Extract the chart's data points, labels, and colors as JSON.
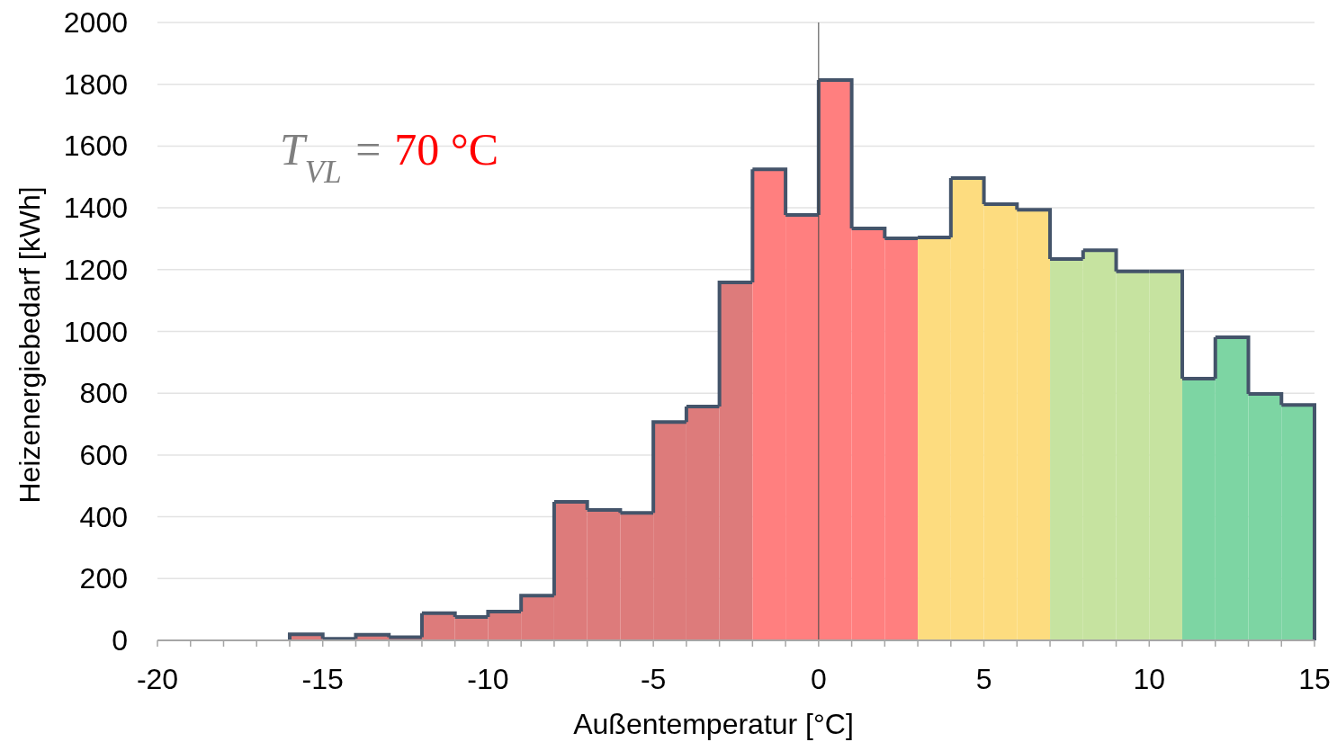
{
  "chart_data": {
    "type": "histogram",
    "xlabel": "Außentemperatur [°C]",
    "ylabel": "Heizenergiebedarf [kWh]",
    "bins": [
      -16,
      -15,
      -14,
      -13,
      -12,
      -11,
      -10,
      -9,
      -8,
      -7,
      -6,
      -5,
      -4,
      -3,
      -2,
      -1,
      0,
      1,
      2,
      3,
      4,
      5,
      6,
      7,
      8,
      9,
      10,
      11,
      12,
      13,
      14,
      15
    ],
    "values": [
      20,
      5,
      18,
      10,
      88,
      76,
      93,
      145,
      448,
      422,
      413,
      707,
      757,
      1159,
      1525,
      1377,
      1814,
      1333,
      1301,
      1304,
      1496,
      1412,
      1394,
      1234,
      1263,
      1194,
      1194,
      847,
      981,
      798,
      762
    ],
    "color": "#44546a",
    "colors": [
      "#dd7b7b",
      "#dd7b7b",
      "#dd7b7b",
      "#dd7b7b",
      "#dd7b7b",
      "#dd7b7b",
      "#dd7b7b",
      "#dd7b7b",
      "#dd7b7b",
      "#dd7b7b",
      "#dd7b7b",
      "#dd7b7b",
      "#dd7b7b",
      "#dd7b7b",
      "#ff7f7f",
      "#ff7f7f",
      "#ff7f7f",
      "#ff7f7f",
      "#ff7f7f",
      "#fddc7f",
      "#fddc7f",
      "#fddc7f",
      "#fddc7f",
      "#c6e3a0",
      "#c6e3a0",
      "#c6e3a0",
      "#c6e3a0",
      "#7dd5a3",
      "#7dd5a3",
      "#7dd5a3",
      "#7dd5a3"
    ],
    "xlim": [
      -20,
      15
    ],
    "xticks": [
      -20,
      {
        "value": -19,
        "label": null
      },
      {
        "value": -18,
        "label": null
      },
      {
        "value": -17,
        "label": null
      },
      {
        "value": -16,
        "label": null
      },
      -15,
      {
        "value": -14,
        "label": null
      },
      {
        "value": -13,
        "label": null
      },
      {
        "value": -12,
        "label": null
      },
      {
        "value": -11,
        "label": null
      },
      -10,
      {
        "value": -9,
        "label": null
      },
      {
        "value": -8,
        "label": null
      },
      {
        "value": -7,
        "label": null
      },
      {
        "value": -6,
        "label": null
      },
      -5,
      {
        "value": -4,
        "label": null
      },
      {
        "value": -3,
        "label": null
      },
      {
        "value": -2,
        "label": null
      },
      {
        "value": -1,
        "label": null
      },
      0,
      {
        "value": 1,
        "label": null
      },
      {
        "value": 2,
        "label": null
      },
      {
        "value": 3,
        "label": null
      },
      {
        "value": 4,
        "label": null
      },
      5,
      {
        "value": 6,
        "label": null
      },
      {
        "value": 7,
        "label": null
      },
      {
        "value": 8,
        "label": null
      },
      {
        "value": 9,
        "label": null
      },
      10,
      {
        "value": 11,
        "label": null
      },
      {
        "value": 12,
        "label": null
      },
      {
        "value": 13,
        "label": null
      },
      {
        "value": 14,
        "label": null
      },
      15
    ],
    "ylim": [
      0,
      2000
    ],
    "yticks": [
      0,
      200,
      400,
      600,
      800,
      1000,
      1200,
      1400,
      1600,
      1800,
      2000
    ],
    "grid": "y",
    "ref_lines": [
      {
        "axis": "x",
        "value": 0,
        "color": "#404040"
      }
    ],
    "annotations": [
      "T$_{VL}$ = 70 °C"
    ]
  }
}
